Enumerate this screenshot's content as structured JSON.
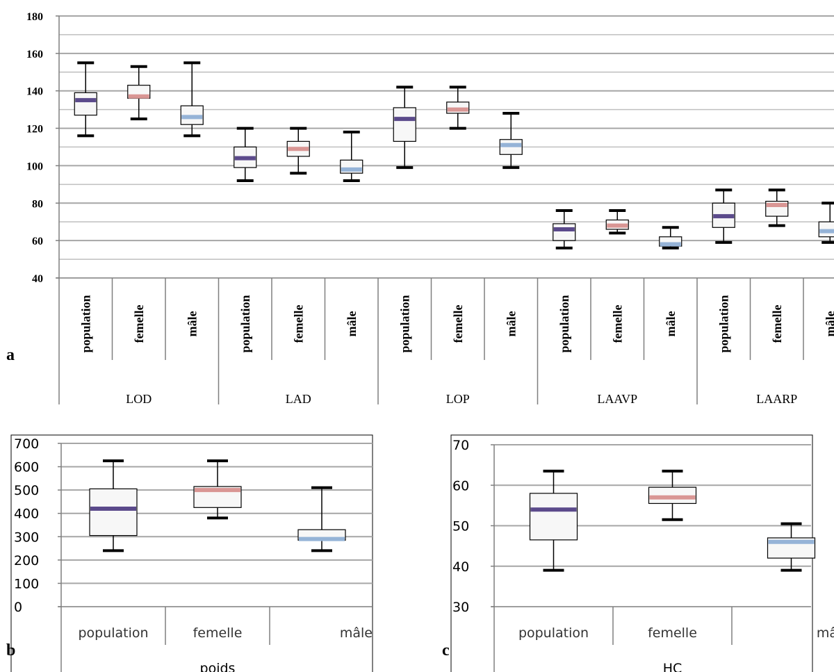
{
  "panel_labels": {
    "a": "a",
    "b": "b",
    "c": "c"
  },
  "colors": {
    "population": "#5b4a8b",
    "femelle": "#d99694",
    "male": "#95b3d7",
    "box_fill": "#f7f7f7",
    "grid": "#a6a6a6",
    "axis": "#7f7f7f",
    "whisker": "#000000"
  },
  "chart_data": [
    {
      "panel": "a",
      "type": "boxplot",
      "title": "",
      "ylim": [
        40,
        180
      ],
      "yticks": [
        40,
        60,
        80,
        100,
        120,
        140,
        160,
        180
      ],
      "grid": "major and minor horizontal",
      "categories": [
        "population",
        "femelle",
        "mâle",
        "population",
        "femelle",
        "mâle",
        "population",
        "femelle",
        "mâle",
        "population",
        "femelle",
        "mâle",
        "population",
        "femelle",
        "mâle"
      ],
      "groups": [
        "LOD",
        "LAD",
        "LOP",
        "LAAVP",
        "LAARP"
      ],
      "series": [
        {
          "min": 116,
          "q1": 127,
          "median": 135,
          "q3": 139,
          "max": 155
        },
        {
          "min": 125,
          "q1": 136,
          "median": 137,
          "q3": 143,
          "max": 153
        },
        {
          "min": 116,
          "q1": 122,
          "median": 126,
          "q3": 132,
          "max": 155
        },
        {
          "min": 92,
          "q1": 99,
          "median": 104,
          "q3": 110,
          "max": 120
        },
        {
          "min": 96,
          "q1": 105,
          "median": 109,
          "q3": 113,
          "max": 120
        },
        {
          "min": 92,
          "q1": 96,
          "median": 98,
          "q3": 103,
          "max": 118
        },
        {
          "min": 99,
          "q1": 113,
          "median": 125,
          "q3": 131,
          "max": 142
        },
        {
          "min": 120,
          "q1": 128,
          "median": 130,
          "q3": 134,
          "max": 142
        },
        {
          "min": 99,
          "q1": 106,
          "median": 111,
          "q3": 114,
          "max": 128
        },
        {
          "min": 56,
          "q1": 60,
          "median": 66,
          "q3": 69,
          "max": 76
        },
        {
          "min": 64,
          "q1": 66,
          "median": 68,
          "q3": 71,
          "max": 76
        },
        {
          "min": 56,
          "q1": 57,
          "median": 58,
          "q3": 62,
          "max": 67
        },
        {
          "min": 59,
          "q1": 67,
          "median": 73,
          "q3": 80,
          "max": 87
        },
        {
          "min": 68,
          "q1": 73,
          "median": 79,
          "q3": 81,
          "max": 87
        },
        {
          "min": 59,
          "q1": 62,
          "median": 65,
          "q3": 70,
          "max": 80
        }
      ]
    },
    {
      "panel": "b",
      "type": "boxplot",
      "title": "",
      "ylim": [
        0,
        700
      ],
      "yticks": [
        0,
        100,
        200,
        300,
        400,
        500,
        600,
        700
      ],
      "grid": "major horizontal",
      "categories": [
        "population",
        "femelle",
        "mâle"
      ],
      "groups": [
        "poids"
      ],
      "series": [
        {
          "min": 240,
          "q1": 305,
          "median": 420,
          "q3": 505,
          "max": 625
        },
        {
          "min": 380,
          "q1": 425,
          "median": 500,
          "q3": 515,
          "max": 625
        },
        {
          "min": 240,
          "q1": 285,
          "median": 290,
          "q3": 330,
          "max": 510
        }
      ]
    },
    {
      "panel": "c",
      "type": "boxplot",
      "title": "",
      "ylim": [
        30,
        70
      ],
      "yticks": [
        30,
        40,
        50,
        60,
        70
      ],
      "grid": "major horizontal",
      "categories": [
        "population",
        "femelle",
        "mâle"
      ],
      "groups": [
        "HC"
      ],
      "series": [
        {
          "min": 39,
          "q1": 46.5,
          "median": 54,
          "q3": 58,
          "max": 63.5
        },
        {
          "min": 51.5,
          "q1": 55.5,
          "median": 57,
          "q3": 59.5,
          "max": 63.5
        },
        {
          "min": 39,
          "q1": 42,
          "median": 46,
          "q3": 47,
          "max": 50.5
        }
      ]
    }
  ]
}
